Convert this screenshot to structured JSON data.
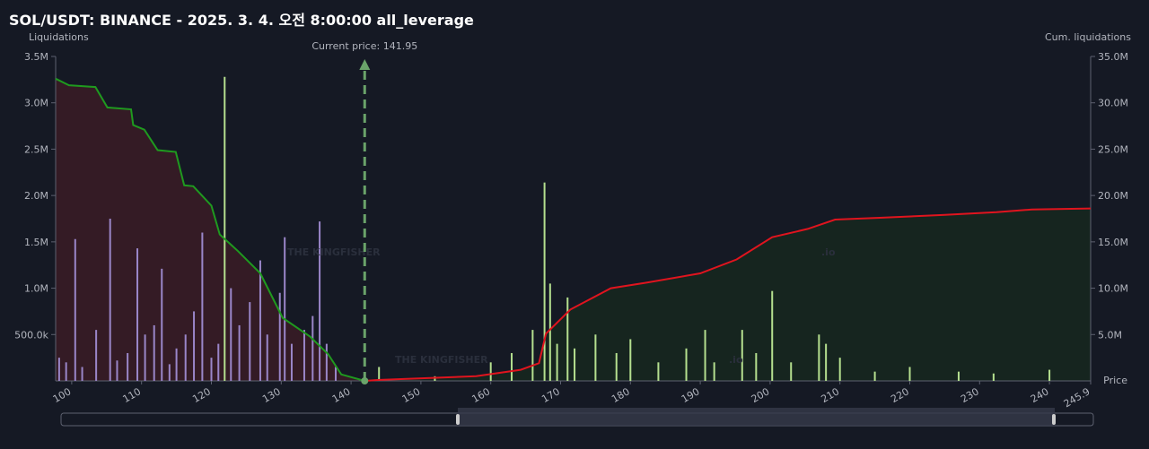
{
  "chart_data": {
    "type": "bar",
    "title": "SOL/USDT: BINANCE - 2025. 3. 4. 오전 8:00:00 all_leverage",
    "y_label": "Liquidations",
    "y2_label": "Cum. liquidations",
    "x_label": "Price",
    "current_price": 141.95,
    "current_price_label": "Current price: 141.95",
    "watermark": "THE KINGFISHER",
    "watermark_suffix": ".io",
    "xlim": [
      97.7,
      245.9
    ],
    "xticks": [
      100,
      110,
      120,
      130,
      140,
      150,
      160,
      170,
      180,
      190,
      200,
      210,
      220,
      230,
      240,
      245.9
    ],
    "ylim": [
      0,
      3500000
    ],
    "yticks": [
      {
        "value": 500000,
        "label": "500.0k"
      },
      {
        "value": 1000000,
        "label": "1.0M"
      },
      {
        "value": 1500000,
        "label": "1.5M"
      },
      {
        "value": 2000000,
        "label": "2.0M"
      },
      {
        "value": 2500000,
        "label": "2.5M"
      },
      {
        "value": 3000000,
        "label": "3.0M"
      },
      {
        "value": 3500000,
        "label": "3.5M"
      }
    ],
    "y2lim": [
      0,
      35000000
    ],
    "y2ticks": [
      {
        "value": 5000000,
        "label": "5.0M"
      },
      {
        "value": 10000000,
        "label": "10.0M"
      },
      {
        "value": 15000000,
        "label": "15.0M"
      },
      {
        "value": 20000000,
        "label": "20.0M"
      },
      {
        "value": 25000000,
        "label": "25.0M"
      },
      {
        "value": 30000000,
        "label": "30.0M"
      },
      {
        "value": 35000000,
        "label": "35.0M"
      }
    ],
    "series": [
      {
        "kind": "bar",
        "color": "#9a86c9",
        "x": [
          98.2,
          99.2,
          100.5,
          101.5,
          103.5,
          105.5,
          106.5,
          108,
          109.4,
          110.5,
          111.8,
          112.9,
          114,
          115,
          116.3,
          117.5,
          118.7,
          120,
          121,
          122.8,
          124,
          125.5,
          127,
          128,
          129.8,
          130.5,
          131.5,
          133.3,
          134.5,
          135.5,
          136.5,
          137.8
        ],
        "values": [
          250000,
          200000,
          1530000,
          150000,
          550000,
          1750000,
          220000,
          300000,
          1430000,
          500000,
          600000,
          1210000,
          180000,
          350000,
          500000,
          750000,
          1600000,
          250000,
          400000,
          1000000,
          600000,
          850000,
          1300000,
          500000,
          950000,
          1550000,
          400000,
          550000,
          700000,
          1720000,
          400000,
          150000
        ]
      },
      {
        "kind": "bar",
        "color": "#b5e08f",
        "x": [
          121.9,
          144,
          152,
          160,
          163,
          166,
          167.7,
          168.5,
          169.5,
          171,
          172,
          175,
          178,
          180,
          184,
          188,
          190.7,
          192,
          196,
          198,
          200.3,
          203,
          207,
          208,
          210,
          215,
          220,
          227,
          232,
          240
        ],
        "values": [
          3280000,
          150000,
          50000,
          200000,
          300000,
          550000,
          2140000,
          1050000,
          400000,
          900000,
          350000,
          500000,
          300000,
          450000,
          200000,
          350000,
          550000,
          200000,
          550000,
          300000,
          970000,
          200000,
          500000,
          400000,
          250000,
          100000,
          150000,
          100000,
          80000,
          120000
        ]
      },
      {
        "kind": "line",
        "axis": "y2",
        "color": "#1f9a1f",
        "fill": "#3a1c26",
        "x": [
          97.7,
          99.6,
          103.4,
          105.1,
          108.5,
          108.8,
          110.4,
          112.3,
          114.9,
          116.1,
          117.4,
          120,
          121.2,
          123.8,
          127,
          130.2,
          134.1,
          136.7,
          138.6,
          141.95
        ],
        "values": [
          32600000,
          31900000,
          31700000,
          29500000,
          29300000,
          27600000,
          27100000,
          24900000,
          24700000,
          21100000,
          21000000,
          18900000,
          15800000,
          14000000,
          11600000,
          6800000,
          4800000,
          2900000,
          700000,
          0
        ]
      },
      {
        "kind": "line",
        "axis": "y2",
        "color": "#e0141e",
        "fill": "#16281f",
        "x": [
          141.95,
          143.8,
          157.9,
          164.3,
          166.9,
          167.9,
          171.4,
          177.2,
          182.3,
          190,
          195.2,
          200.3,
          205.4,
          209.3,
          215.7,
          224.7,
          232.4,
          237.5,
          245.9
        ],
        "values": [
          0,
          100000,
          500000,
          1200000,
          1900000,
          5100000,
          7700000,
          10000000,
          10600000,
          11600000,
          13100000,
          15500000,
          16400000,
          17400000,
          17600000,
          17900000,
          18200000,
          18500000,
          18600000
        ]
      }
    ]
  }
}
